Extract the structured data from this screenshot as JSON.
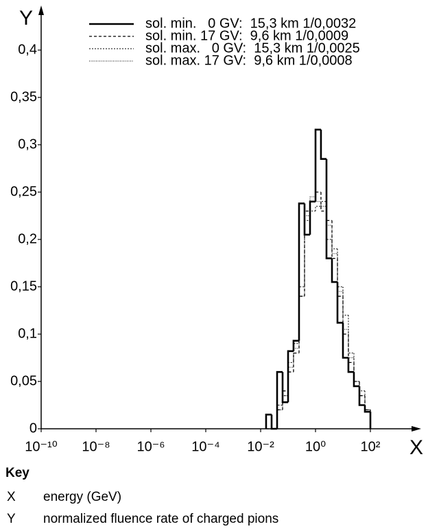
{
  "chart_data": {
    "type": "histogram",
    "x_label": "X",
    "y_label": "Y",
    "xscale": "log",
    "xlim": [
      1e-10,
      100
    ],
    "ylim": [
      0,
      0.4
    ],
    "xticks": [
      {
        "value": 1e-10,
        "label": "10⁻¹⁰"
      },
      {
        "value": 1e-08,
        "label": "10⁻⁸"
      },
      {
        "value": 1e-06,
        "label": "10⁻⁶"
      },
      {
        "value": 0.0001,
        "label": "10⁻⁴"
      },
      {
        "value": 0.01,
        "label": "10⁻²"
      },
      {
        "value": 1,
        "label": "10⁰"
      },
      {
        "value": 100,
        "label": "10²"
      }
    ],
    "yticks": [
      0,
      {
        "value": 0.05,
        "label": "0,05"
      },
      {
        "value": 0.1,
        "label": "0,1"
      },
      {
        "value": 0.15,
        "label": "0,15"
      },
      {
        "value": 0.2,
        "label": "0,2"
      },
      {
        "value": 0.25,
        "label": "0,25"
      },
      {
        "value": 0.3,
        "label": "0,3"
      },
      {
        "value": 0.35,
        "label": "0,35"
      },
      {
        "value": 0.4,
        "label": "0,4"
      }
    ],
    "bins": [
      0.0158,
      0.0251,
      0.0398,
      0.0631,
      0.1,
      0.158,
      0.251,
      0.398,
      0.631,
      1,
      1.58,
      2.51,
      3.98,
      6.31,
      10,
      15.8,
      25.1,
      39.8,
      63.1,
      100
    ],
    "series": [
      {
        "name": "sol. min.   0 GV:  15,3 km 1/0,0032",
        "color": "#000000",
        "style": "solid",
        "values": [
          0.015,
          0,
          0.06,
          0.028,
          0.082,
          0.093,
          0.238,
          0.205,
          0.24,
          0.316,
          0.285,
          0.18,
          0.155,
          0.112,
          0.075,
          0.06,
          0.045,
          0.025,
          0.018
        ]
      },
      {
        "name": "sol. min. 17 GV:  9,6 km 1/0,0009",
        "color": "#000000",
        "style": "dashed",
        "values": [
          0,
          0,
          0.02,
          0.04,
          0.06,
          0.08,
          0.14,
          0.23,
          0.24,
          0.25,
          0.23,
          0.22,
          0.18,
          0.14,
          0.1,
          0.07,
          0.05,
          0.035,
          0.02
        ]
      },
      {
        "name": "sol. max.   0 GV:  15,3 km 1/0,0025",
        "color": "#000000",
        "style": "dotted",
        "values": [
          0,
          0,
          0.025,
          0.035,
          0.07,
          0.09,
          0.15,
          0.22,
          0.23,
          0.235,
          0.24,
          0.2,
          0.19,
          0.15,
          0.12,
          0.08,
          0.05,
          0.04,
          0.02
        ]
      },
      {
        "name": "sol. max. 17 GV:  9,6 km 1/0,0008",
        "color": "#000000",
        "style": "dash-dot",
        "values": [
          0,
          0,
          0.02,
          0.035,
          0.065,
          0.085,
          0.14,
          0.225,
          0.245,
          0.24,
          0.235,
          0.215,
          0.185,
          0.145,
          0.105,
          0.075,
          0.05,
          0.035,
          0.02
        ]
      }
    ],
    "legend": "top-right"
  },
  "key": {
    "title": "Key",
    "items": [
      {
        "symbol": "X",
        "text": "energy (GeV)"
      },
      {
        "symbol": "Y",
        "text": "normalized fluence rate of charged pions"
      }
    ]
  }
}
